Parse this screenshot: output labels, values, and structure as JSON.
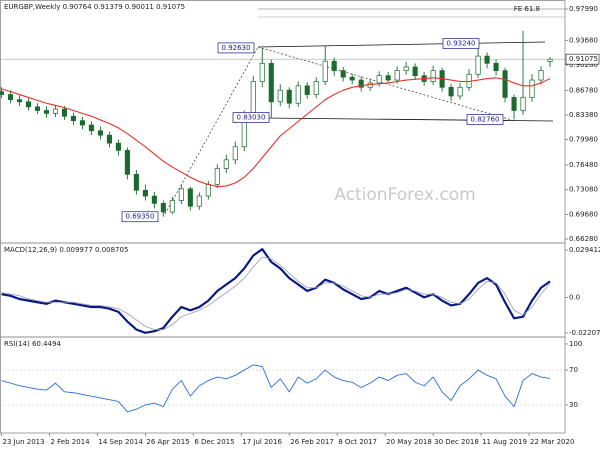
{
  "chart_data": [
    {
      "type": "candlestick",
      "title": "EURGBP,Weekly  0.90764 0.91379 0.90011 0.91075",
      "color": "#1b6b2e",
      "x": [
        0,
        6,
        12,
        18,
        24,
        30,
        36,
        42,
        48,
        54,
        60,
        66,
        72,
        78,
        84,
        90,
        96,
        102,
        108,
        114,
        120,
        126,
        132,
        138,
        144,
        150,
        156,
        162,
        168,
        174,
        180,
        186,
        192,
        198,
        204,
        210,
        216,
        222,
        228,
        234,
        240,
        246,
        252,
        258,
        264,
        270,
        276,
        282,
        288,
        294,
        300,
        306,
        312,
        318,
        324,
        330,
        336,
        342,
        348,
        354,
        360,
        366
      ],
      "open": [
        0.866,
        0.862,
        0.855,
        0.852,
        0.845,
        0.84,
        0.836,
        0.842,
        0.832,
        0.826,
        0.82,
        0.812,
        0.806,
        0.795,
        0.785,
        0.752,
        0.73,
        0.722,
        0.712,
        0.7,
        0.716,
        0.732,
        0.708,
        0.722,
        0.738,
        0.76,
        0.772,
        0.79,
        0.83,
        0.88,
        0.905,
        0.852,
        0.868,
        0.85,
        0.874,
        0.862,
        0.88,
        0.908,
        0.895,
        0.886,
        0.882,
        0.872,
        0.878,
        0.888,
        0.882,
        0.895,
        0.9,
        0.888,
        0.88,
        0.895,
        0.872,
        0.86,
        0.872,
        0.89,
        0.915,
        0.905,
        0.895,
        0.858,
        0.84,
        0.858,
        0.882,
        0.90764
      ],
      "high": [
        0.872,
        0.868,
        0.861,
        0.857,
        0.85,
        0.846,
        0.848,
        0.846,
        0.837,
        0.831,
        0.825,
        0.818,
        0.811,
        0.8,
        0.789,
        0.758,
        0.738,
        0.728,
        0.716,
        0.721,
        0.738,
        0.735,
        0.727,
        0.743,
        0.766,
        0.779,
        0.797,
        0.84,
        0.888,
        0.9263,
        0.91,
        0.876,
        0.872,
        0.88,
        0.879,
        0.886,
        0.93,
        0.913,
        0.9,
        0.891,
        0.887,
        0.884,
        0.894,
        0.893,
        0.901,
        0.907,
        0.905,
        0.893,
        0.902,
        0.899,
        0.877,
        0.878,
        0.897,
        0.9324,
        0.92,
        0.91,
        0.899,
        0.862,
        0.95,
        0.89,
        0.901,
        0.91379
      ],
      "low": [
        0.857,
        0.85,
        0.846,
        0.84,
        0.835,
        0.83,
        0.831,
        0.827,
        0.82,
        0.814,
        0.806,
        0.8,
        0.789,
        0.778,
        0.745,
        0.724,
        0.716,
        0.705,
        0.6935,
        0.697,
        0.711,
        0.702,
        0.703,
        0.717,
        0.733,
        0.754,
        0.766,
        0.784,
        0.824,
        0.872,
        0.8303,
        0.846,
        0.843,
        0.845,
        0.856,
        0.857,
        0.875,
        0.888,
        0.88,
        0.876,
        0.866,
        0.867,
        0.873,
        0.877,
        0.877,
        0.889,
        0.882,
        0.874,
        0.875,
        0.866,
        0.853,
        0.855,
        0.867,
        0.885,
        0.898,
        0.888,
        0.851,
        0.8276,
        0.834,
        0.852,
        0.876,
        0.90011
      ],
      "close": [
        0.862,
        0.855,
        0.852,
        0.845,
        0.84,
        0.836,
        0.842,
        0.832,
        0.826,
        0.82,
        0.812,
        0.806,
        0.795,
        0.785,
        0.752,
        0.73,
        0.722,
        0.712,
        0.7,
        0.716,
        0.732,
        0.708,
        0.722,
        0.738,
        0.76,
        0.772,
        0.79,
        0.83,
        0.88,
        0.905,
        0.852,
        0.868,
        0.85,
        0.874,
        0.862,
        0.88,
        0.908,
        0.895,
        0.886,
        0.882,
        0.872,
        0.878,
        0.888,
        0.882,
        0.895,
        0.9,
        0.888,
        0.88,
        0.895,
        0.872,
        0.86,
        0.872,
        0.89,
        0.915,
        0.905,
        0.895,
        0.858,
        0.84,
        0.858,
        0.882,
        0.895,
        0.91075
      ],
      "moving_average": {
        "color": "#e8322a",
        "values": [
          0.87,
          0.866,
          0.862,
          0.858,
          0.854,
          0.85,
          0.847,
          0.844,
          0.84,
          0.836,
          0.832,
          0.827,
          0.822,
          0.816,
          0.808,
          0.799,
          0.79,
          0.78,
          0.77,
          0.762,
          0.755,
          0.748,
          0.742,
          0.738,
          0.735,
          0.736,
          0.74,
          0.748,
          0.76,
          0.775,
          0.79,
          0.805,
          0.815,
          0.825,
          0.835,
          0.845,
          0.855,
          0.862,
          0.868,
          0.872,
          0.874,
          0.876,
          0.877,
          0.878,
          0.88,
          0.882,
          0.883,
          0.884,
          0.885,
          0.884,
          0.882,
          0.88,
          0.88,
          0.882,
          0.884,
          0.885,
          0.883,
          0.878,
          0.874,
          0.874,
          0.878,
          0.884
        ]
      },
      "xlim": [
        -1,
        376
      ],
      "ylim": [
        0.6573,
        0.9896
      ],
      "yticks": [
        {
          "value": 0.9799,
          "label": "0.97990"
        },
        {
          "value": 0.9368,
          "label": "0.93680"
        },
        {
          "value": 0.9028,
          "label": "0.90280"
        },
        {
          "value": 0.8678,
          "label": "0.86780"
        },
        {
          "value": 0.8338,
          "label": "0.83380"
        },
        {
          "value": 0.7998,
          "label": "0.79980"
        },
        {
          "value": 0.7648,
          "label": "0.76480"
        },
        {
          "value": 0.7308,
          "label": "0.73080"
        },
        {
          "value": 0.6968,
          "label": "0.69680"
        },
        {
          "value": 0.6628,
          "label": "0.66280"
        }
      ],
      "last_price": 0.91075,
      "annotations": [
        {
          "value": 0.9263,
          "label": "0.92630"
        },
        {
          "value": 0.8303,
          "label": "0.83030"
        },
        {
          "value": 0.6935,
          "label": "0.69350"
        },
        {
          "value": 0.9324,
          "label": "0.93240"
        },
        {
          "value": 0.8276,
          "label": "0.82760"
        }
      ],
      "fe_label": "FE 61.8",
      "watermark": "ActionForex.com"
    },
    {
      "type": "line",
      "title": "MACD(12,26,9) 0.009977 0.008705",
      "x": [
        0,
        6,
        12,
        18,
        24,
        30,
        36,
        42,
        48,
        54,
        60,
        66,
        72,
        78,
        84,
        90,
        96,
        102,
        108,
        114,
        120,
        126,
        132,
        138,
        144,
        150,
        156,
        162,
        168,
        174,
        180,
        186,
        192,
        198,
        204,
        210,
        216,
        222,
        228,
        234,
        240,
        246,
        252,
        258,
        264,
        270,
        276,
        282,
        288,
        294,
        300,
        306,
        312,
        318,
        324,
        330,
        336,
        342,
        348,
        354,
        360,
        366
      ],
      "series": [
        {
          "color": "#0b1a80",
          "width": 2.2,
          "values": [
            0.002,
            0.001,
            -0.001,
            -0.002,
            -0.003,
            -0.004,
            -0.002,
            -0.003,
            -0.004,
            -0.005,
            -0.006,
            -0.006,
            -0.007,
            -0.009,
            -0.015,
            -0.02,
            -0.022,
            -0.021,
            -0.019,
            -0.012,
            -0.006,
            -0.008,
            -0.006,
            -0.002,
            0.004,
            0.008,
            0.012,
            0.018,
            0.026,
            0.03,
            0.022,
            0.018,
            0.012,
            0.008,
            0.004,
            0.006,
            0.011,
            0.009,
            0.005,
            0.002,
            -0.001,
            0.0,
            0.004,
            0.002,
            0.004,
            0.006,
            0.003,
            0.0,
            0.002,
            -0.002,
            -0.005,
            -0.004,
            0.002,
            0.009,
            0.012,
            0.008,
            -0.003,
            -0.013,
            -0.012,
            -0.002,
            0.006,
            0.009977
          ]
        },
        {
          "color": "#9a9ab8",
          "width": 0.8,
          "values": [
            0.003,
            0.002,
            0.001,
            -0.001,
            -0.002,
            -0.003,
            -0.003,
            -0.003,
            -0.003,
            -0.004,
            -0.005,
            -0.005,
            -0.006,
            -0.007,
            -0.01,
            -0.014,
            -0.018,
            -0.02,
            -0.02,
            -0.017,
            -0.012,
            -0.01,
            -0.008,
            -0.005,
            -0.001,
            0.003,
            0.007,
            0.012,
            0.019,
            0.025,
            0.024,
            0.02,
            0.015,
            0.01,
            0.006,
            0.006,
            0.009,
            0.009,
            0.007,
            0.004,
            0.001,
            0.0,
            0.002,
            0.002,
            0.003,
            0.005,
            0.004,
            0.002,
            0.002,
            0.0,
            -0.003,
            -0.004,
            -0.001,
            0.005,
            0.01,
            0.009,
            0.002,
            -0.008,
            -0.011,
            -0.006,
            0.002,
            0.008705
          ]
        }
      ],
      "xlim": [
        -1,
        376
      ],
      "ylim": [
        -0.0246,
        0.0338
      ],
      "yticks": [
        0.029412,
        {
          "value": 0,
          "label": "0.0"
        },
        -0.022074
      ]
    },
    {
      "type": "line",
      "title": "RSI(14) 60.4494",
      "x": [
        0,
        6,
        12,
        18,
        24,
        30,
        36,
        42,
        48,
        54,
        60,
        66,
        72,
        78,
        84,
        90,
        96,
        102,
        108,
        114,
        120,
        126,
        132,
        138,
        144,
        150,
        156,
        162,
        168,
        174,
        180,
        186,
        192,
        198,
        204,
        210,
        216,
        222,
        228,
        234,
        240,
        246,
        252,
        258,
        264,
        270,
        276,
        282,
        288,
        294,
        300,
        306,
        312,
        318,
        324,
        330,
        336,
        342,
        348,
        354,
        360,
        366
      ],
      "series": [
        {
          "color": "#2a6fd6",
          "width": 0.9,
          "values": [
            58,
            55,
            52,
            50,
            48,
            47,
            55,
            45,
            44,
            42,
            40,
            38,
            36,
            34,
            22,
            25,
            30,
            32,
            28,
            48,
            58,
            40,
            52,
            58,
            62,
            60,
            64,
            70,
            76,
            74,
            50,
            60,
            45,
            62,
            55,
            60,
            70,
            62,
            58,
            56,
            50,
            55,
            62,
            58,
            64,
            66,
            56,
            52,
            62,
            45,
            35,
            52,
            60,
            70,
            64,
            60,
            40,
            28,
            58,
            66,
            62,
            60.4494
          ]
        }
      ],
      "xlim": [
        -1,
        376
      ],
      "ylim": [
        -2.3,
        108
      ],
      "yticks": [
        100,
        70,
        30
      ],
      "xticks": [
        {
          "value": 0,
          "label": "23 Jun 2013"
        },
        {
          "value": 32,
          "label": "2 Feb 2014"
        },
        {
          "value": 64,
          "label": "14 Sep 2014"
        },
        {
          "value": 96,
          "label": "26 Apr 2015"
        },
        {
          "value": 128,
          "label": "6 Dec 2015"
        },
        {
          "value": 160,
          "label": "17 Jul 2016"
        },
        {
          "value": 192,
          "label": "26 Feb 2017"
        },
        {
          "value": 224,
          "label": "8 Oct 2017"
        },
        {
          "value": 256,
          "label": "20 May 2018"
        },
        {
          "value": 288,
          "label": "30 Dec 2018"
        },
        {
          "value": 320,
          "label": "11 Aug 2019"
        },
        {
          "value": 352,
          "label": "22 Mar 2020"
        }
      ]
    }
  ]
}
